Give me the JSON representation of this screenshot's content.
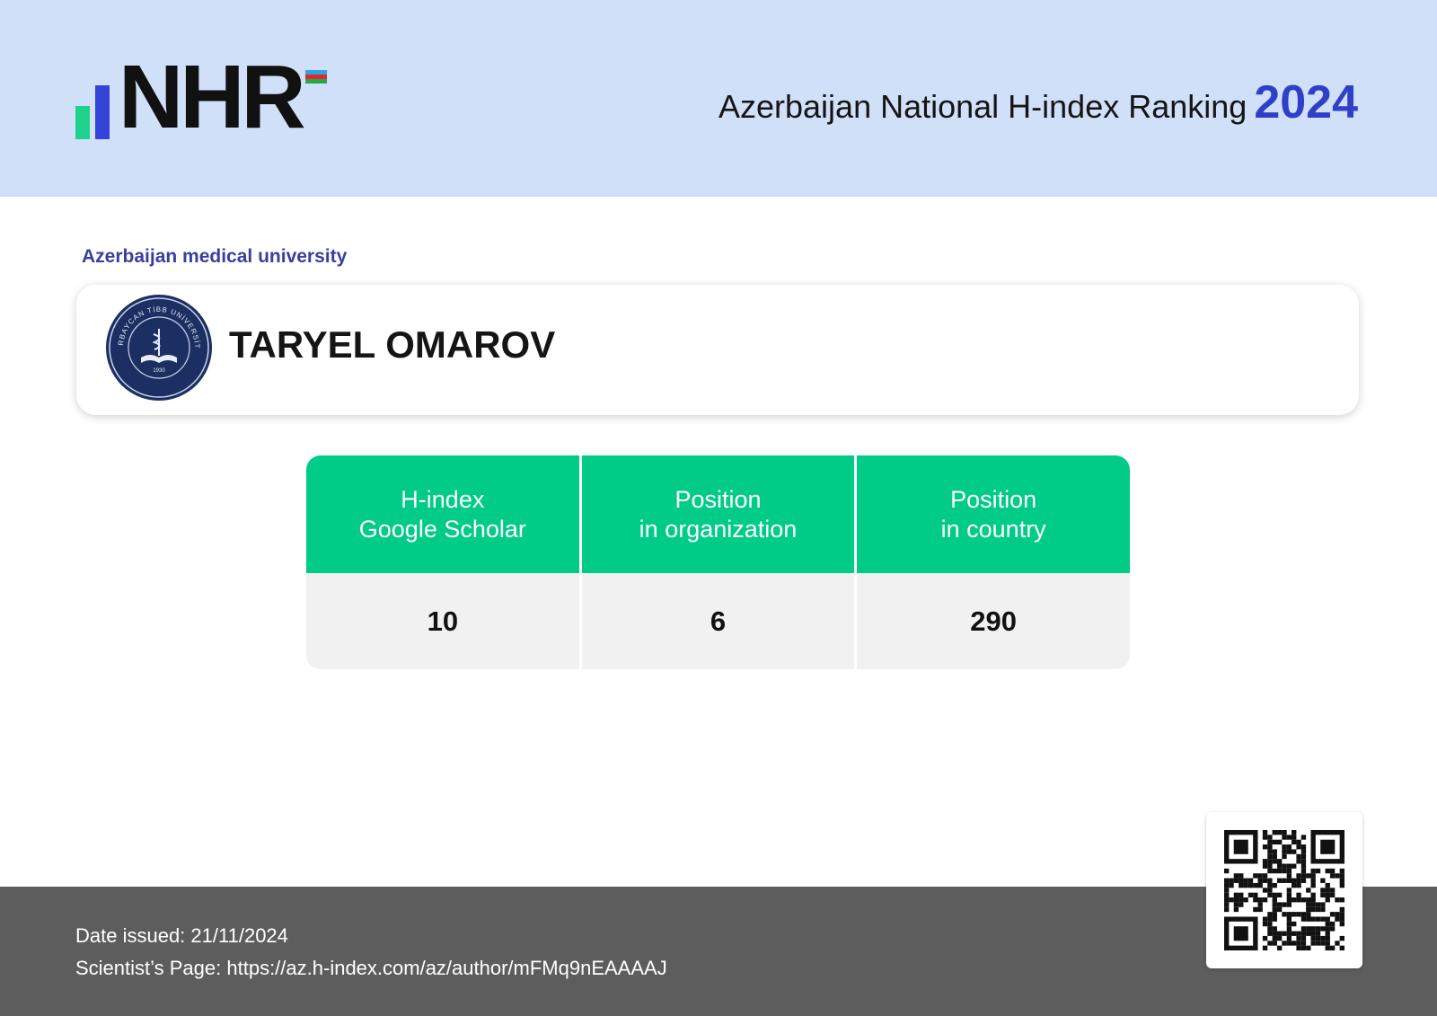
{
  "header": {
    "logo": "NHR",
    "title": "Azerbaijan National H-index Ranking",
    "year": "2024"
  },
  "organization": "Azerbaijan medical university",
  "seal": {
    "text": "AZƏRBAYCAN TİBB UNİVERSİTETİ",
    "year": "1930"
  },
  "scientist": {
    "name": "TARYEL OMAROV"
  },
  "table": {
    "headers": [
      [
        "H-index",
        "Google Scholar"
      ],
      [
        "Position",
        "in organization"
      ],
      [
        "Position",
        "in country"
      ]
    ],
    "values": [
      10,
      6,
      290
    ]
  },
  "footer": {
    "date_label": "Date issued:",
    "date": "21/11/2024",
    "page_label": "Scientist’s Page:",
    "url": "https://az.h-index.com/az/author/mFMq9nEAAAAJ"
  }
}
